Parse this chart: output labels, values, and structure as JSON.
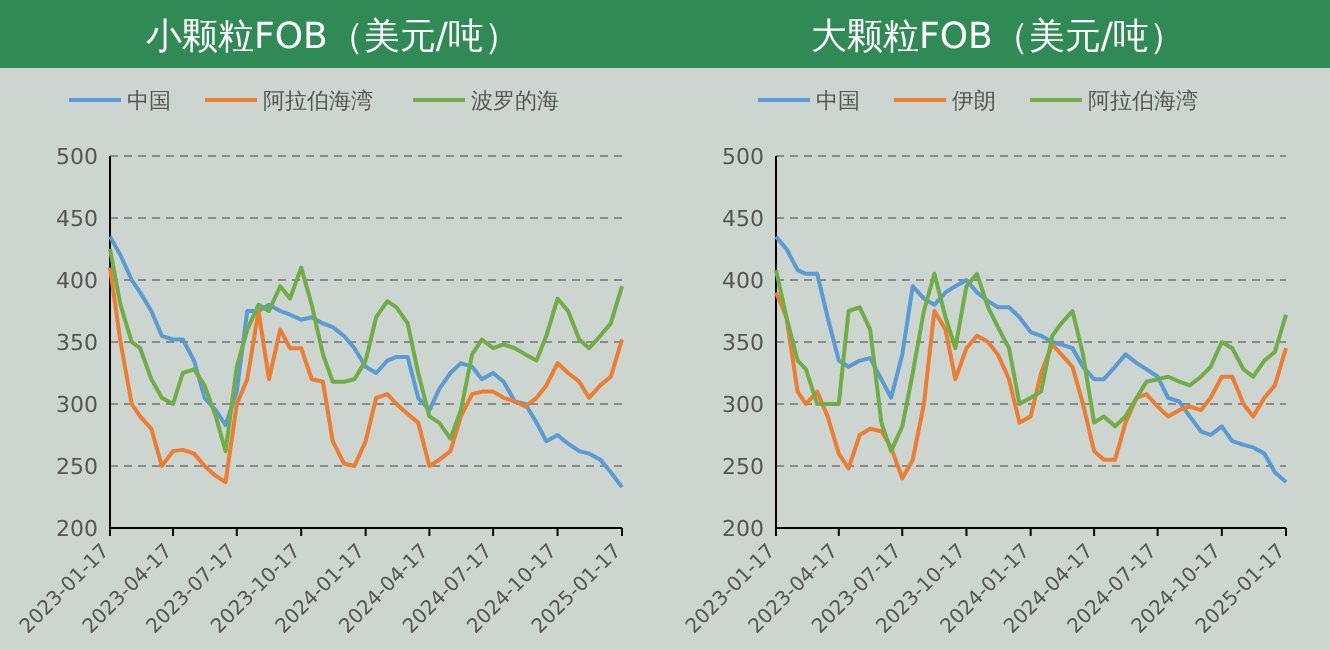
{
  "chart_data": [
    {
      "type": "line",
      "title": "小颗粒FOB（美元/吨）",
      "x": [
        "2023-01-17",
        "2023-02-01",
        "2023-02-17",
        "2023-03-01",
        "2023-03-17",
        "2023-04-01",
        "2023-04-17",
        "2023-05-01",
        "2023-05-17",
        "2023-06-01",
        "2023-06-17",
        "2023-07-01",
        "2023-07-17",
        "2023-08-01",
        "2023-08-17",
        "2023-09-01",
        "2023-09-17",
        "2023-10-01",
        "2023-10-17",
        "2023-11-01",
        "2023-11-17",
        "2023-12-01",
        "2023-12-17",
        "2024-01-01",
        "2024-01-17",
        "2024-02-01",
        "2024-02-17",
        "2024-03-01",
        "2024-03-17",
        "2024-04-01",
        "2024-04-17",
        "2024-05-01",
        "2024-05-17",
        "2024-06-01",
        "2024-06-17",
        "2024-07-01",
        "2024-07-17",
        "2024-08-01",
        "2024-08-17",
        "2024-09-01",
        "2024-09-17",
        "2024-10-01",
        "2024-10-17",
        "2024-11-01",
        "2024-11-17",
        "2024-12-01",
        "2024-12-17",
        "2025-01-01",
        "2025-01-17"
      ],
      "series": [
        {
          "name": "中国",
          "color": "#5b9bd5",
          "values": [
            435,
            420,
            400,
            390,
            375,
            355,
            352,
            352,
            335,
            305,
            295,
            283,
            310,
            375,
            375,
            380,
            375,
            372,
            368,
            370,
            365,
            362,
            355,
            345,
            330,
            325,
            335,
            338,
            338,
            305,
            295,
            312,
            325,
            333,
            330,
            320,
            325,
            318,
            302,
            300,
            285,
            270,
            275,
            268,
            262,
            260,
            255,
            245,
            233
          ]
        },
        {
          "name": "阿拉伯海湾",
          "color": "#ed7d31",
          "values": [
            410,
            350,
            300,
            290,
            280,
            250,
            262,
            263,
            260,
            250,
            242,
            237,
            300,
            320,
            375,
            320,
            360,
            345,
            345,
            320,
            318,
            270,
            252,
            250,
            270,
            305,
            308,
            300,
            292,
            285,
            250,
            255,
            262,
            290,
            308,
            310,
            310,
            305,
            302,
            298,
            305,
            315,
            333,
            325,
            318,
            305,
            315,
            322,
            352
          ]
        },
        {
          "name": "波罗的海",
          "color": "#70ad47",
          "values": [
            425,
            380,
            350,
            345,
            320,
            305,
            300,
            325,
            328,
            315,
            290,
            262,
            330,
            360,
            380,
            375,
            395,
            385,
            410,
            380,
            340,
            318,
            318,
            320,
            335,
            370,
            383,
            378,
            365,
            325,
            290,
            285,
            272,
            295,
            340,
            352,
            345,
            348,
            345,
            340,
            335,
            355,
            385,
            375,
            352,
            345,
            355,
            365,
            395
          ]
        }
      ],
      "xlim": [
        "2023-01-17",
        "2025-01-17"
      ],
      "xticks": [
        "2023-01-17",
        "2023-04-17",
        "2023-07-17",
        "2023-10-17",
        "2024-01-17",
        "2024-04-17",
        "2024-07-17",
        "2024-10-17",
        "2025-01-17"
      ],
      "ylim": [
        200,
        500
      ],
      "yticks": [
        200,
        250,
        300,
        350,
        400,
        450,
        500
      ],
      "grid": "y",
      "legend": "top"
    },
    {
      "type": "line",
      "title": "大颗粒FOB（美元/吨）",
      "x": [
        "2023-01-17",
        "2023-02-01",
        "2023-02-17",
        "2023-03-01",
        "2023-03-17",
        "2023-04-01",
        "2023-04-17",
        "2023-05-01",
        "2023-05-17",
        "2023-06-01",
        "2023-06-17",
        "2023-07-01",
        "2023-07-17",
        "2023-08-01",
        "2023-08-17",
        "2023-09-01",
        "2023-09-17",
        "2023-10-01",
        "2023-10-17",
        "2023-11-01",
        "2023-11-17",
        "2023-12-01",
        "2023-12-17",
        "2024-01-01",
        "2024-01-17",
        "2024-02-01",
        "2024-02-17",
        "2024-03-01",
        "2024-03-17",
        "2024-04-01",
        "2024-04-17",
        "2024-05-01",
        "2024-05-17",
        "2024-06-01",
        "2024-06-17",
        "2024-07-01",
        "2024-07-17",
        "2024-08-01",
        "2024-08-17",
        "2024-09-01",
        "2024-09-17",
        "2024-10-01",
        "2024-10-17",
        "2024-11-01",
        "2024-11-17",
        "2024-12-01",
        "2024-12-17",
        "2025-01-01",
        "2025-01-17"
      ],
      "series": [
        {
          "name": "中国",
          "color": "#5b9bd5",
          "values": [
            435,
            425,
            408,
            405,
            405,
            370,
            335,
            330,
            335,
            337,
            320,
            305,
            340,
            395,
            385,
            380,
            390,
            395,
            400,
            390,
            383,
            378,
            378,
            370,
            358,
            355,
            350,
            348,
            345,
            330,
            320,
            320,
            330,
            340,
            333,
            328,
            322,
            305,
            302,
            290,
            278,
            275,
            282,
            270,
            267,
            265,
            260,
            245,
            237
          ]
        },
        {
          "name": "伊朗",
          "color": "#ed7d31",
          "values": [
            390,
            370,
            310,
            300,
            310,
            290,
            260,
            248,
            275,
            280,
            278,
            265,
            240,
            255,
            300,
            375,
            360,
            320,
            345,
            355,
            350,
            340,
            320,
            285,
            290,
            325,
            348,
            340,
            330,
            300,
            262,
            255,
            255,
            285,
            305,
            308,
            298,
            290,
            295,
            298,
            295,
            305,
            322,
            322,
            300,
            290,
            305,
            315,
            345
          ]
        },
        {
          "name": "阿拉伯海湾",
          "color": "#70ad47",
          "values": [
            408,
            370,
            335,
            328,
            300,
            300,
            300,
            375,
            378,
            360,
            285,
            262,
            282,
            325,
            375,
            405,
            370,
            345,
            395,
            405,
            378,
            362,
            345,
            300,
            305,
            310,
            355,
            365,
            375,
            340,
            285,
            290,
            282,
            290,
            305,
            318,
            320,
            322,
            318,
            315,
            322,
            330,
            350,
            345,
            328,
            322,
            335,
            342,
            372
          ]
        }
      ],
      "xlim": [
        "2023-01-17",
        "2025-01-17"
      ],
      "xticks": [
        "2023-01-17",
        "2023-04-17",
        "2023-07-17",
        "2023-10-17",
        "2024-01-17",
        "2024-04-17",
        "2024-07-17",
        "2024-10-17",
        "2025-01-17"
      ],
      "ylim": [
        200,
        500
      ],
      "yticks": [
        200,
        250,
        300,
        350,
        400,
        450,
        500
      ],
      "grid": "y",
      "legend": "top"
    }
  ]
}
